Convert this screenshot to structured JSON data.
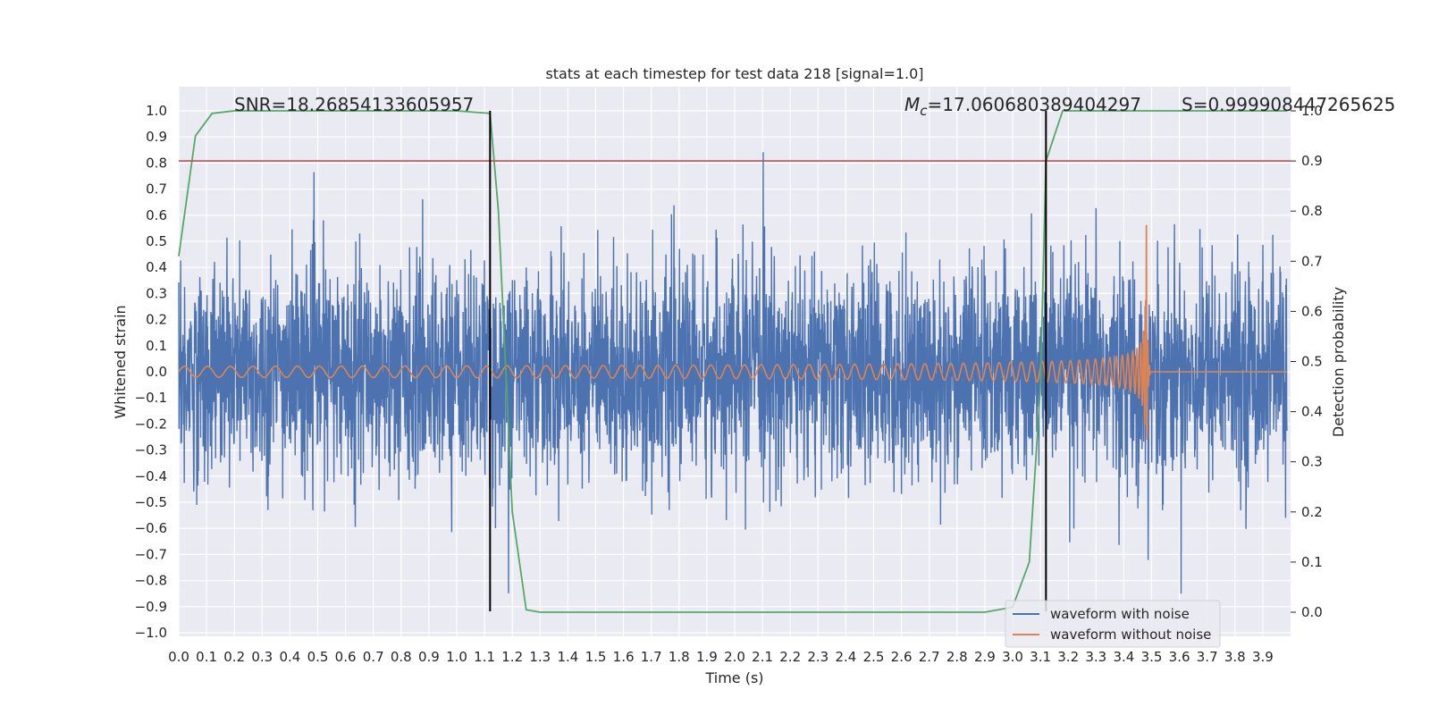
{
  "chart_data": {
    "type": "line",
    "title": "stats at each timestep for test data 218 [signal=1.0]",
    "xlabel": "Time (s)",
    "ylabel_left": "Whitened strain",
    "ylabel_right": "Detection probability",
    "xlim": [
      0.0,
      4.0
    ],
    "ylim_left": [
      -1.0,
      1.0
    ],
    "ylim_right": [
      0.0,
      1.0
    ],
    "x_ticks": [
      "0.0",
      "0.1",
      "0.2",
      "0.3",
      "0.4",
      "0.5",
      "0.6",
      "0.7",
      "0.8",
      "0.9",
      "1.0",
      "1.1",
      "1.2",
      "1.3",
      "1.4",
      "1.5",
      "1.6",
      "1.7",
      "1.8",
      "1.9",
      "2.0",
      "2.1",
      "2.2",
      "2.3",
      "2.4",
      "2.5",
      "2.6",
      "2.7",
      "2.8",
      "2.9",
      "3.0",
      "3.1",
      "3.2",
      "3.3",
      "3.4",
      "3.5",
      "3.6",
      "3.7",
      "3.8",
      "3.9"
    ],
    "y_ticks_left": [
      "1.0",
      "0.9",
      "0.8",
      "0.7",
      "0.6",
      "0.5",
      "0.4",
      "0.3",
      "0.2",
      "0.1",
      "0.0",
      "−0.1",
      "−0.2",
      "−0.3",
      "−0.4",
      "−0.5",
      "−0.6",
      "−0.7",
      "−0.8",
      "−0.9",
      "−1.0"
    ],
    "y_ticks_right": [
      "1.0",
      "0.9",
      "0.8",
      "0.7",
      "0.6",
      "0.5",
      "0.4",
      "0.3",
      "0.2",
      "0.1",
      "0.0"
    ],
    "annotations": {
      "snr": "SNR=18.26854133605957",
      "mc_symbol": "M",
      "mc_sub": "c",
      "mc_value": "=17.060680389404297",
      "s": "S=0.999908447265625"
    },
    "threshold_right": 0.9,
    "vertical_lines": [
      1.12,
      3.12
    ],
    "series": [
      {
        "name": "waveform with noise",
        "axis": "left",
        "color": "#4c72b0",
        "kind": "noise",
        "amplitude_range": [
          -0.85,
          0.97
        ]
      },
      {
        "name": "waveform without noise",
        "axis": "left",
        "color": "#dd8452",
        "kind": "chirp",
        "merger_time": 3.48,
        "amplitude_start": 0.02,
        "amplitude_peak": 0.9
      },
      {
        "axis": "right",
        "color": "#55a868",
        "kind": "probability",
        "x": [
          0.0,
          0.06,
          0.12,
          0.2,
          1.0,
          1.12,
          1.15,
          1.2,
          1.25,
          1.3,
          2.9,
          3.0,
          3.06,
          3.1,
          3.12,
          3.18,
          3.3,
          4.0
        ],
        "y": [
          0.71,
          0.95,
          0.995,
          1.0,
          1.0,
          0.995,
          0.8,
          0.2,
          0.005,
          0.0,
          0.0,
          0.01,
          0.1,
          0.45,
          0.9,
          1.0,
          1.0,
          1.0
        ]
      }
    ],
    "threshold_color": "#c44e52",
    "vline_color": "#000000",
    "grid": true,
    "legend_position": "lower-right"
  }
}
